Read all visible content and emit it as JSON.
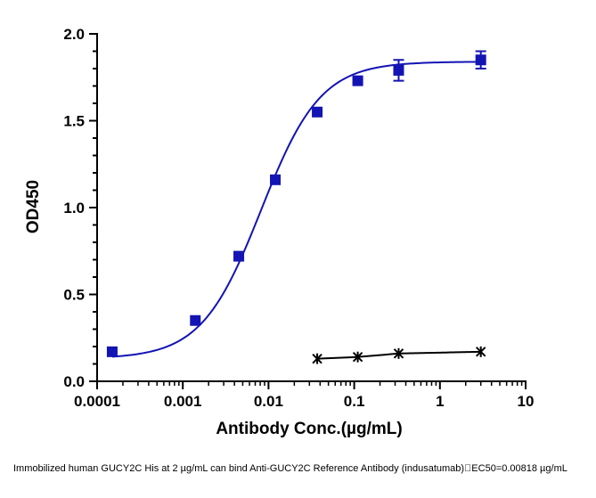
{
  "chart_data": {
    "type": "scatter",
    "xlabel": "Antibody Conc.(µg/mL)",
    "ylabel": "OD450",
    "x_scale": "log",
    "xlim": [
      0.0001,
      10
    ],
    "ylim": [
      0,
      2.0
    ],
    "x_ticks": [
      "0.0001",
      "0.001",
      "0.01",
      "0.1",
      "1",
      "10"
    ],
    "y_ticks": [
      "0.0",
      "0.5",
      "1.0",
      "1.5",
      "2.0"
    ],
    "grid": false,
    "series": [
      {
        "marker": "square",
        "color": "#1414b4",
        "fit_curve": true,
        "points": [
          {
            "x": 0.00015,
            "y": 0.17,
            "err": 0
          },
          {
            "x": 0.0014,
            "y": 0.35,
            "err": 0
          },
          {
            "x": 0.0045,
            "y": 0.72,
            "err": 0.02
          },
          {
            "x": 0.012,
            "y": 1.16,
            "err": 0
          },
          {
            "x": 0.037,
            "y": 1.55,
            "err": 0
          },
          {
            "x": 0.11,
            "y": 1.73,
            "err": 0.01
          },
          {
            "x": 0.33,
            "y": 1.79,
            "err": 0.06
          },
          {
            "x": 3.0,
            "y": 1.85,
            "err": 0.05
          }
        ],
        "fit": {
          "bottom": 0.13,
          "top": 1.84,
          "ec50": 0.00818,
          "hill": 1.25
        }
      },
      {
        "marker": "star",
        "color": "#000000",
        "fit_curve": true,
        "points": [
          {
            "x": 0.037,
            "y": 0.13,
            "err": 0
          },
          {
            "x": 0.11,
            "y": 0.14,
            "err": 0
          },
          {
            "x": 0.33,
            "y": 0.16,
            "err": 0
          },
          {
            "x": 3.0,
            "y": 0.17,
            "err": 0
          }
        ]
      }
    ],
    "caption": "Immobilized human GUCY2C His at 2  µg/mL can bind  Anti-GUCY2C Reference Antibody (indusatumab)\u0000EC50=0.00818 µg/mL"
  }
}
